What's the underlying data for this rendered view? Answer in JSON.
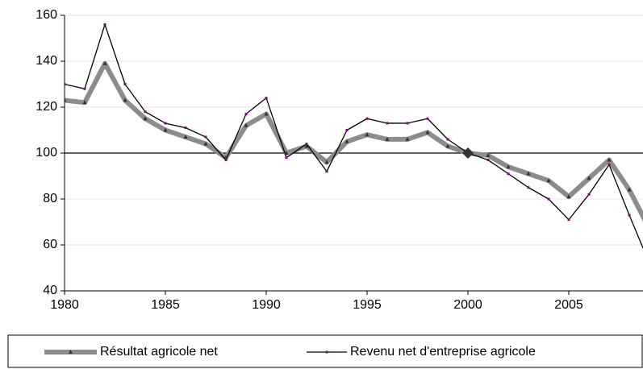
{
  "chart_data": {
    "type": "line",
    "x": [
      1980,
      1981,
      1982,
      1983,
      1984,
      1985,
      1986,
      1987,
      1988,
      1989,
      1990,
      1991,
      1992,
      1993,
      1994,
      1995,
      1996,
      1997,
      1998,
      1999,
      2000,
      2001,
      2002,
      2003,
      2004,
      2005,
      2006,
      2007,
      2008,
      2009
    ],
    "series": [
      {
        "name": "Résultat agricole net",
        "color": "#8c8c8c",
        "marker_color": "#333333",
        "values": [
          123,
          122,
          139,
          123,
          115,
          110,
          107,
          104,
          98,
          112,
          117,
          100,
          103,
          96,
          105,
          108,
          106,
          106,
          109,
          103,
          100,
          99,
          94,
          91,
          88,
          81,
          89,
          97,
          84,
          67
        ]
      },
      {
        "name": "Revenu net d'entreprise agricole",
        "color": "#000000",
        "marker_color": "#800080",
        "values": [
          130,
          128,
          156,
          130,
          118,
          113,
          111,
          107,
          97,
          117,
          124,
          98,
          104,
          92,
          110,
          115,
          113,
          113,
          115,
          106,
          100,
          97,
          91,
          85,
          80,
          71,
          82,
          95,
          73,
          52
        ]
      }
    ],
    "reference_y": 100,
    "base_point": {
      "x": 2000,
      "y": 100
    },
    "xlim": [
      1980,
      2008.68
    ],
    "xticks": [
      1980,
      1985,
      1990,
      1995,
      2000,
      2005
    ],
    "ylim": [
      40,
      160
    ],
    "yticks": [
      40,
      60,
      80,
      100,
      120,
      140,
      160
    ],
    "grid": true
  }
}
